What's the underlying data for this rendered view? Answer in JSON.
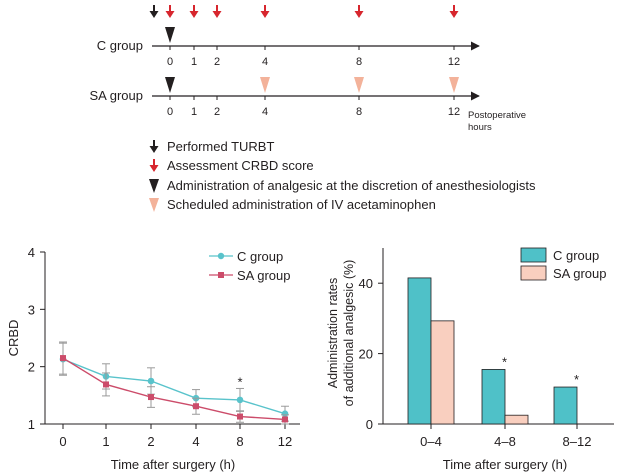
{
  "colors": {
    "black": "#231f20",
    "red": "#d7262e",
    "salmon": "#f3b29a",
    "teal": "#59c3cb",
    "teal_bar": "#4fc1c8",
    "pink_line": "#cc4c6a",
    "pink_bar": "#f9cfbf",
    "errbar": "#9a9a9a"
  },
  "timeline": {
    "groups": [
      {
        "label": "C group",
        "ticks": [
          "0",
          "1",
          "2",
          "4",
          "8",
          "12"
        ],
        "markers": [
          {
            "at": "0",
            "kind": "discretion-analgesic"
          }
        ]
      },
      {
        "label": "SA group",
        "ticks": [
          "0",
          "1",
          "2",
          "4",
          "8",
          "12"
        ],
        "markers": [
          {
            "at": "0",
            "kind": "discretion-analgesic"
          },
          {
            "at": "4",
            "kind": "scheduled-acetaminophen"
          },
          {
            "at": "8",
            "kind": "scheduled-acetaminophen"
          },
          {
            "at": "12",
            "kind": "scheduled-acetaminophen"
          }
        ]
      }
    ],
    "turbt_at": "before-0",
    "assessment_at": [
      "0",
      "1",
      "2",
      "4",
      "8",
      "12"
    ],
    "axis_caption_line1": "Postoperative",
    "axis_caption_line2": "hours"
  },
  "legend": {
    "items": [
      {
        "icon": "black-arrow-down",
        "label": "Performed TURBT"
      },
      {
        "icon": "red-arrow-down",
        "label": "Assessment CRBD score"
      },
      {
        "icon": "black-triangle-down",
        "label": "Administration of analgesic at the discretion of anesthesiologists"
      },
      {
        "icon": "salmon-triangle-down",
        "label": "Scheduled administration of IV acetaminophen"
      }
    ]
  },
  "chart_data": [
    {
      "type": "line",
      "title": "",
      "xlabel": "Time after surgery (h)",
      "ylabel": "CRBD",
      "categories": [
        "0",
        "1",
        "2",
        "4",
        "8",
        "12"
      ],
      "ylim": [
        1,
        4
      ],
      "yticks": [
        "1",
        "2",
        "3",
        "4"
      ],
      "legend_position": "top-right",
      "series": [
        {
          "name": "C group",
          "values": [
            2.13,
            1.83,
            1.75,
            1.45,
            1.42,
            1.18
          ],
          "err": [
            0.28,
            0.22,
            0.23,
            0.15,
            0.2,
            0.13
          ]
        },
        {
          "name": "SA group",
          "values": [
            2.15,
            1.69,
            1.47,
            1.31,
            1.13,
            1.08
          ],
          "err": [
            0.28,
            0.2,
            0.18,
            0.14,
            0.1,
            0.08
          ]
        }
      ],
      "annotations": [
        {
          "category": "8",
          "text": "*"
        }
      ]
    },
    {
      "type": "bar",
      "title": "",
      "xlabel": "Time after surgery (h)",
      "ylabel_line1": "Administration rates",
      "ylabel_line2": "of additional analgesic (%)",
      "categories": [
        "0–4",
        "4–8",
        "8–12"
      ],
      "ylim": [
        0,
        50
      ],
      "yticks": [
        "0",
        "20",
        "40"
      ],
      "legend_position": "top-right",
      "series": [
        {
          "name": "C group",
          "values": [
            41.5,
            15.5,
            10.5
          ]
        },
        {
          "name": "SA group",
          "values": [
            29.3,
            2.5,
            0
          ]
        }
      ],
      "annotations": [
        {
          "category": "4–8",
          "text": "*"
        },
        {
          "category": "8–12",
          "text": "*"
        }
      ]
    }
  ]
}
